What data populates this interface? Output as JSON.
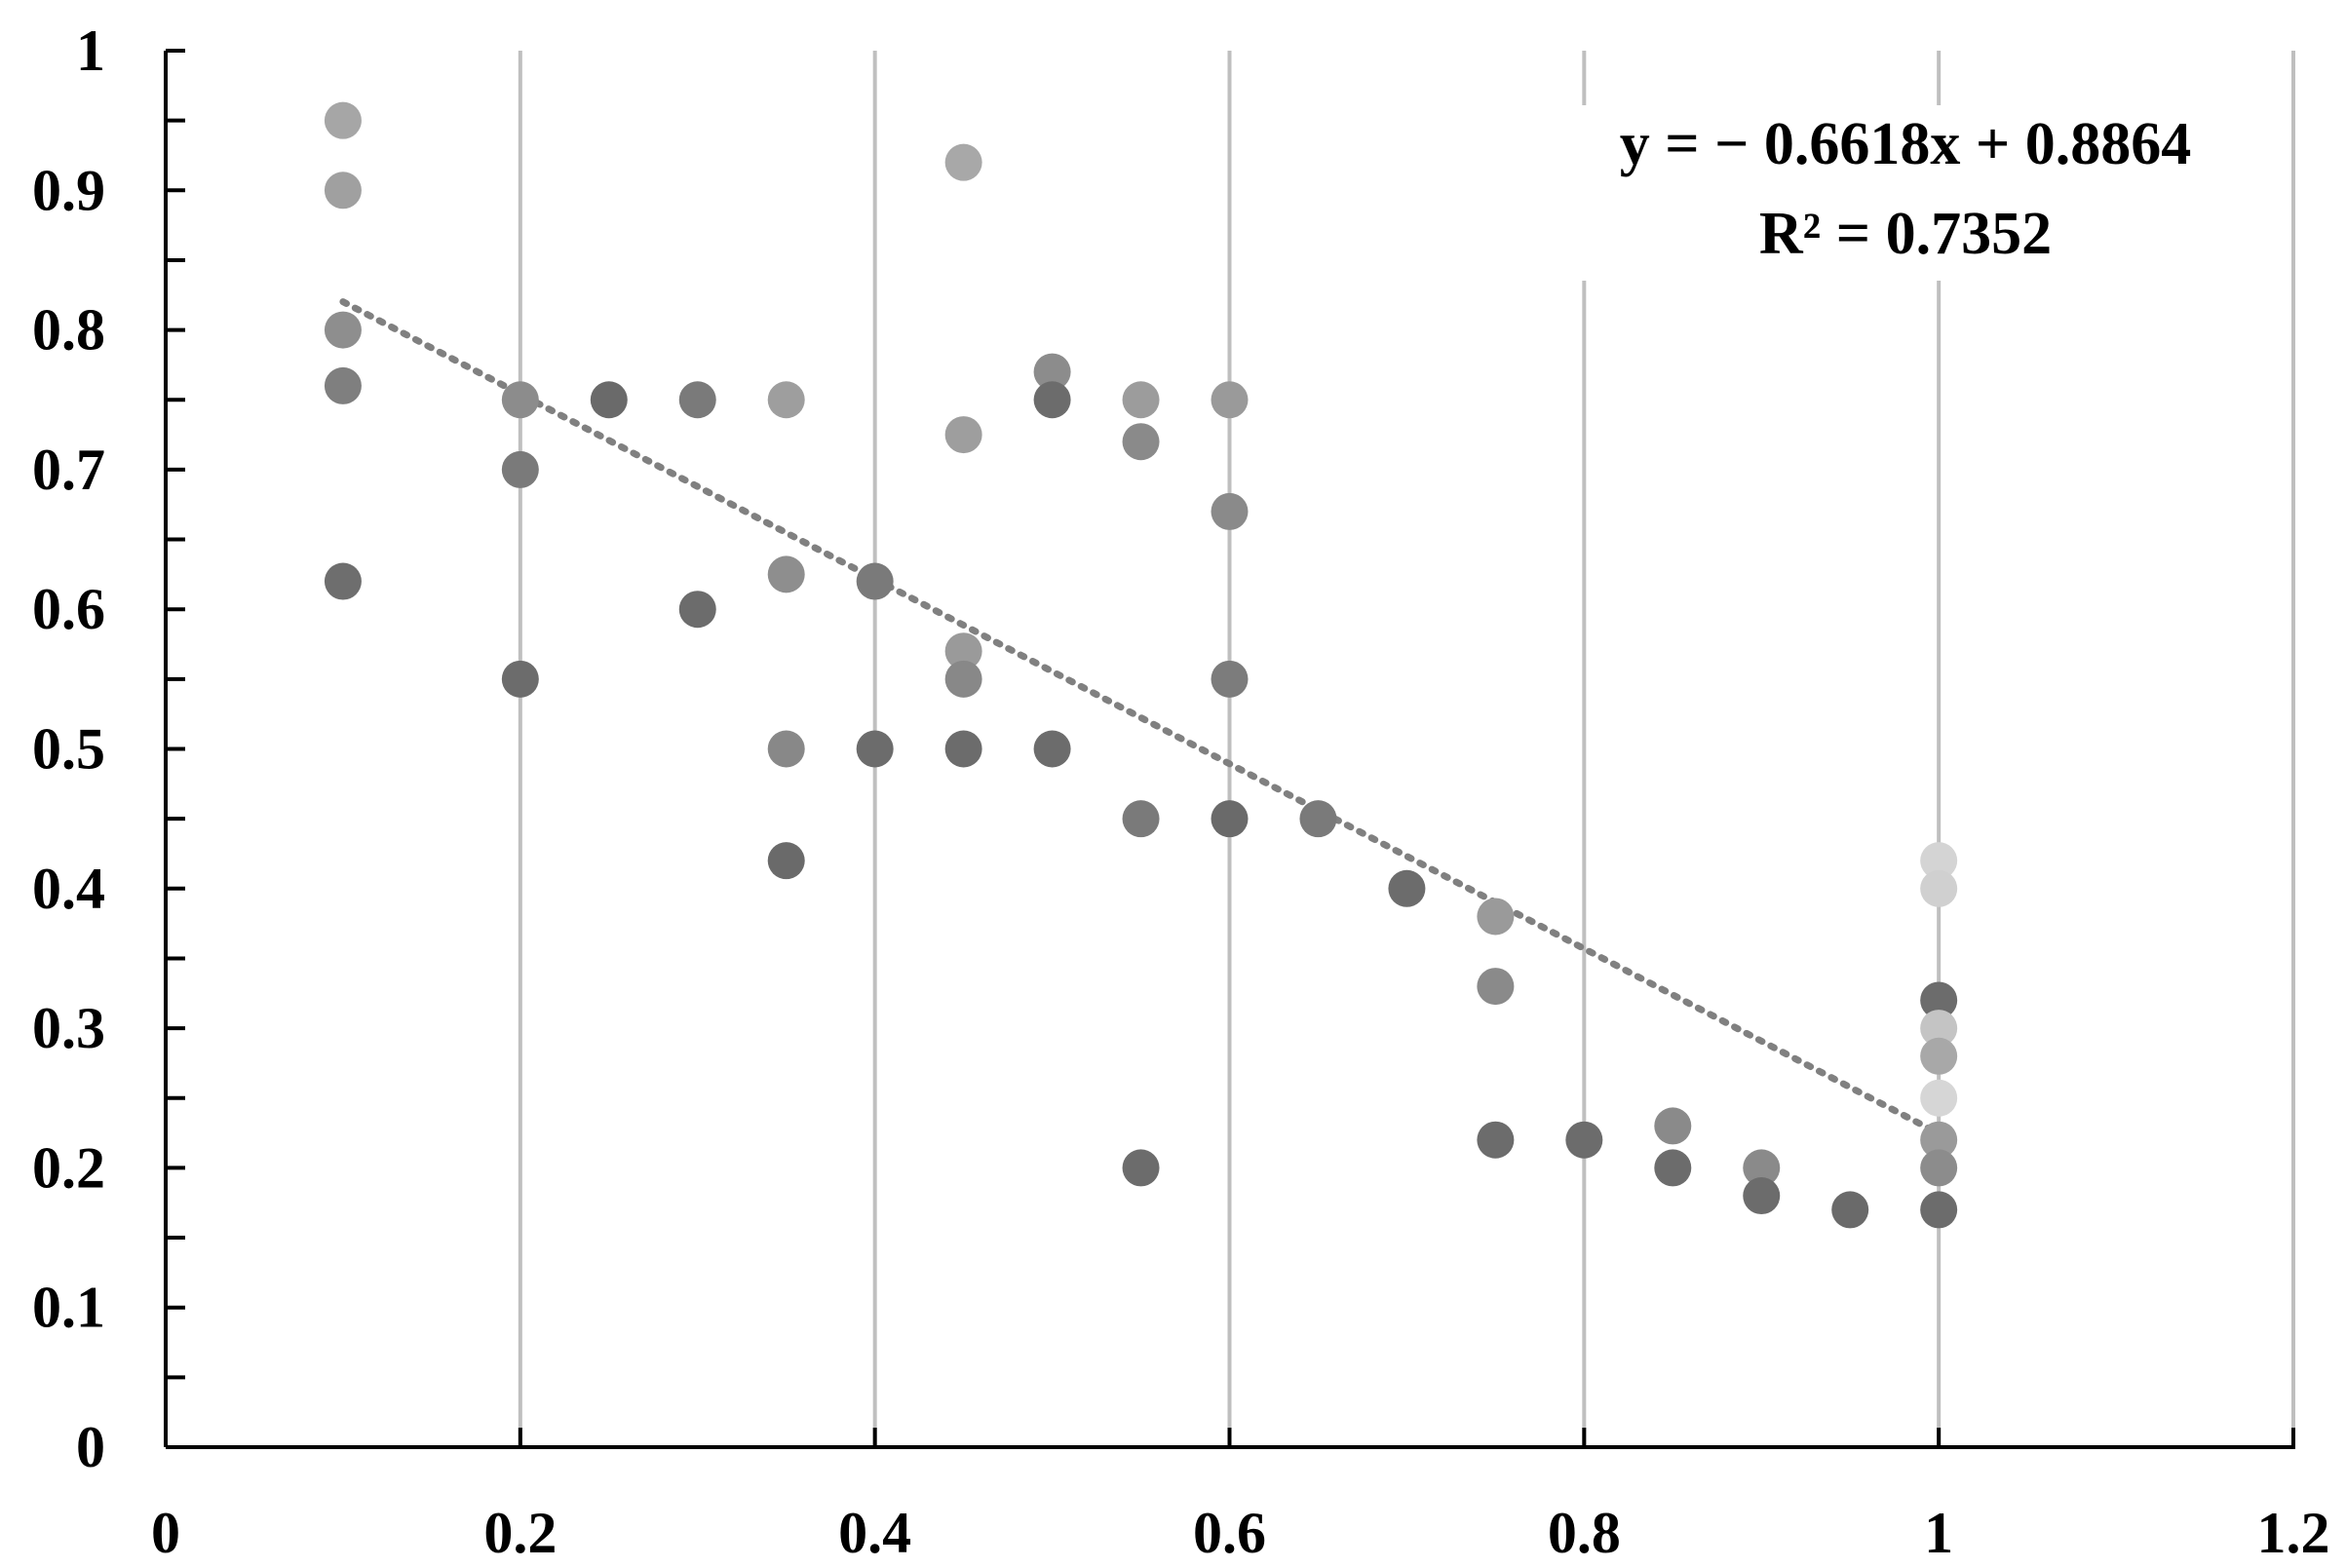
{
  "chart_data": {
    "type": "scatter",
    "title": "",
    "xlabel": "",
    "ylabel": "",
    "xlim": [
      0,
      1.2
    ],
    "ylim": [
      0,
      1
    ],
    "x_ticks": [
      0,
      0.2,
      0.4,
      0.6,
      0.8,
      1,
      1.2
    ],
    "x_tick_labels": [
      "0",
      "0.2",
      "0.4",
      "0.6",
      "0.8",
      "1",
      "1.2"
    ],
    "y_ticks": [
      0,
      0.1,
      0.2,
      0.3,
      0.4,
      0.5,
      0.6,
      0.7,
      0.8,
      0.9,
      1
    ],
    "y_tick_labels": [
      "0",
      "0.1",
      "0.2",
      "0.3",
      "0.4",
      "0.5",
      "0.6",
      "0.7",
      "0.8",
      "0.9",
      "1"
    ],
    "grid": {
      "vertical": true,
      "horizontal": false
    },
    "legend": null,
    "points": [
      {
        "x": 0.1,
        "y": 0.95,
        "color": "#a6a6a6"
      },
      {
        "x": 0.1,
        "y": 0.9,
        "color": "#a0a0a0"
      },
      {
        "x": 0.1,
        "y": 0.8,
        "color": "#8e8e8e"
      },
      {
        "x": 0.1,
        "y": 0.76,
        "color": "#7f7f7f"
      },
      {
        "x": 0.1,
        "y": 0.62,
        "color": "#6e6e6e"
      },
      {
        "x": 0.2,
        "y": 0.75,
        "color": "#8c8c8c"
      },
      {
        "x": 0.2,
        "y": 0.7,
        "color": "#7a7a7a"
      },
      {
        "x": 0.2,
        "y": 0.55,
        "color": "#6c6c6c"
      },
      {
        "x": 0.25,
        "y": 0.75,
        "color": "#6a6a6a"
      },
      {
        "x": 0.3,
        "y": 0.75,
        "color": "#7a7a7a"
      },
      {
        "x": 0.3,
        "y": 0.6,
        "color": "#6c6c6c"
      },
      {
        "x": 0.35,
        "y": 0.75,
        "color": "#9e9e9e"
      },
      {
        "x": 0.35,
        "y": 0.625,
        "color": "#8e8e8e"
      },
      {
        "x": 0.35,
        "y": 0.5,
        "color": "#888888"
      },
      {
        "x": 0.35,
        "y": 0.42,
        "color": "#6a6a6a"
      },
      {
        "x": 0.4,
        "y": 0.62,
        "color": "#7a7a7a"
      },
      {
        "x": 0.4,
        "y": 0.5,
        "color": "#6c6c6c"
      },
      {
        "x": 0.45,
        "y": 0.92,
        "color": "#a8a8a8"
      },
      {
        "x": 0.45,
        "y": 0.725,
        "color": "#9e9e9e"
      },
      {
        "x": 0.45,
        "y": 0.57,
        "color": "#9a9a9a"
      },
      {
        "x": 0.45,
        "y": 0.55,
        "color": "#888888"
      },
      {
        "x": 0.45,
        "y": 0.5,
        "color": "#6c6c6c"
      },
      {
        "x": 0.5,
        "y": 0.77,
        "color": "#8c8c8c"
      },
      {
        "x": 0.5,
        "y": 0.75,
        "color": "#6c6c6c"
      },
      {
        "x": 0.5,
        "y": 0.5,
        "color": "#6c6c6c"
      },
      {
        "x": 0.55,
        "y": 0.75,
        "color": "#9c9c9c"
      },
      {
        "x": 0.55,
        "y": 0.72,
        "color": "#8a8a8a"
      },
      {
        "x": 0.55,
        "y": 0.45,
        "color": "#7a7a7a"
      },
      {
        "x": 0.55,
        "y": 0.2,
        "color": "#6c6c6c"
      },
      {
        "x": 0.6,
        "y": 0.75,
        "color": "#9a9a9a"
      },
      {
        "x": 0.6,
        "y": 0.67,
        "color": "#8a8a8a"
      },
      {
        "x": 0.6,
        "y": 0.55,
        "color": "#7c7c7c"
      },
      {
        "x": 0.6,
        "y": 0.45,
        "color": "#6a6a6a"
      },
      {
        "x": 0.65,
        "y": 0.45,
        "color": "#7a7a7a"
      },
      {
        "x": 0.7,
        "y": 0.4,
        "color": "#6c6c6c"
      },
      {
        "x": 0.75,
        "y": 0.38,
        "color": "#9a9a9a"
      },
      {
        "x": 0.75,
        "y": 0.33,
        "color": "#8a8a8a"
      },
      {
        "x": 0.75,
        "y": 0.22,
        "color": "#6c6c6c"
      },
      {
        "x": 0.8,
        "y": 0.22,
        "color": "#6c6c6c"
      },
      {
        "x": 0.85,
        "y": 0.23,
        "color": "#8a8a8a"
      },
      {
        "x": 0.85,
        "y": 0.2,
        "color": "#6c6c6c"
      },
      {
        "x": 0.9,
        "y": 0.2,
        "color": "#8a8a8a"
      },
      {
        "x": 0.9,
        "y": 0.18,
        "color": "#6c6c6c"
      },
      {
        "x": 0.95,
        "y": 0.17,
        "color": "#6a6a6a"
      },
      {
        "x": 1,
        "y": 0.42,
        "color": "#d4d4d4"
      },
      {
        "x": 1,
        "y": 0.4,
        "color": "#d0d0d0"
      },
      {
        "x": 1,
        "y": 0.32,
        "color": "#6c6c6c"
      },
      {
        "x": 1,
        "y": 0.3,
        "color": "#c4c4c4"
      },
      {
        "x": 1,
        "y": 0.28,
        "color": "#a8a8a8"
      },
      {
        "x": 1,
        "y": 0.25,
        "color": "#d6d6d6"
      },
      {
        "x": 1,
        "y": 0.22,
        "color": "#9a9a9a"
      },
      {
        "x": 1,
        "y": 0.2,
        "color": "#8c8c8c"
      },
      {
        "x": 1,
        "y": 0.17,
        "color": "#6c6c6c"
      }
    ],
    "trendline": {
      "type": "linear",
      "slope": -0.6618,
      "intercept": 0.8864,
      "x_range": [
        0.1,
        1
      ],
      "style": "dotted",
      "color": "#808080"
    },
    "annotations": {
      "equation": "y = − 0.6618x + 0.8864",
      "r_squared": "R² = 0.7352"
    },
    "colors": {
      "axis": "#000000",
      "grid": "#bfbfbf",
      "trendline": "#808080"
    }
  }
}
